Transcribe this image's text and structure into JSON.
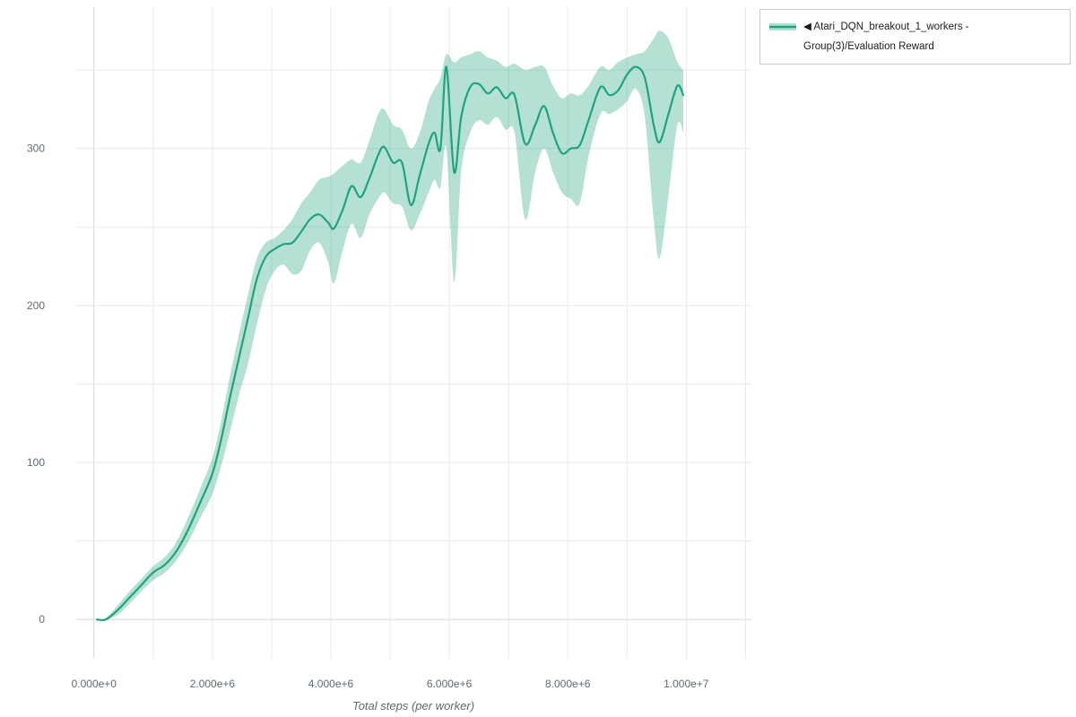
{
  "window": {
    "background": "#ffffff"
  },
  "legend": {
    "collapse_icon": "◀",
    "series_label": "Atari_DQN_breakout_1_workers - Group(3)/Evaluation Reward"
  },
  "chart_data": {
    "type": "line",
    "title": "",
    "xlabel": "Total steps (per worker)",
    "ylabel": "",
    "legend_position": "top-right-outside",
    "grid": true,
    "xlim": [
      -300000,
      11100000
    ],
    "ylim": [
      -25,
      390
    ],
    "x_grid_step": 1000000,
    "y_grid_step": 50,
    "x_ticks": {
      "values": [
        0,
        2000000,
        4000000,
        6000000,
        8000000,
        10000000
      ],
      "labels": [
        "0.000e+0",
        "2.000e+6",
        "4.000e+6",
        "6.000e+6",
        "8.000e+6",
        "1.000e+7"
      ]
    },
    "y_ticks": {
      "values": [
        0,
        100,
        200,
        300
      ],
      "labels": [
        "0",
        "100",
        "200",
        "300"
      ]
    },
    "series": [
      {
        "name": "Atari_DQN_breakout_1_workers - Group(3)/Evaluation Reward",
        "color": "#1ea47c",
        "band_opacity": 0.33,
        "x": [
          50000,
          200000,
          400000,
          600000,
          800000,
          1000000,
          1200000,
          1400000,
          1600000,
          1800000,
          2000000,
          2150000,
          2300000,
          2450000,
          2600000,
          2750000,
          2900000,
          3050000,
          3200000,
          3350000,
          3500000,
          3650000,
          3800000,
          3950000,
          4050000,
          4200000,
          4350000,
          4500000,
          4650000,
          4800000,
          4900000,
          5050000,
          5200000,
          5350000,
          5500000,
          5650000,
          5750000,
          5850000,
          5950000,
          6080000,
          6200000,
          6350000,
          6500000,
          6650000,
          6800000,
          6950000,
          7100000,
          7280000,
          7450000,
          7600000,
          7750000,
          7900000,
          8050000,
          8200000,
          8350000,
          8550000,
          8700000,
          8850000,
          9000000,
          9150000,
          9300000,
          9450000,
          9550000,
          9700000,
          9850000,
          9950000
        ],
        "mean": [
          0,
          0,
          6,
          14,
          22,
          30,
          35,
          44,
          58,
          75,
          93,
          115,
          142,
          167,
          192,
          217,
          231,
          236,
          239,
          240,
          247,
          255,
          258,
          253,
          249,
          261,
          276,
          269,
          281,
          296,
          301,
          291,
          291,
          264,
          283,
          303,
          310,
          300,
          352,
          285,
          320,
          339,
          341,
          335,
          339,
          332,
          334,
          303,
          315,
          327,
          310,
          297,
          300,
          302,
          318,
          339,
          334,
          337,
          347,
          352,
          345,
          315,
          304,
          322,
          340,
          334
        ],
        "lower": [
          0,
          0,
          3,
          10,
          18,
          25,
          30,
          38,
          50,
          65,
          80,
          98,
          120,
          143,
          163,
          188,
          210,
          222,
          226,
          220,
          222,
          235,
          240,
          228,
          214,
          235,
          252,
          243,
          258,
          268,
          272,
          265,
          263,
          248,
          258,
          272,
          280,
          275,
          300,
          215,
          285,
          310,
          318,
          315,
          320,
          312,
          310,
          255,
          285,
          300,
          285,
          272,
          268,
          265,
          295,
          322,
          322,
          325,
          330,
          338,
          320,
          255,
          230,
          270,
          315,
          310
        ],
        "upper": [
          0,
          1,
          9,
          18,
          26,
          34,
          40,
          50,
          66,
          84,
          103,
          127,
          156,
          182,
          207,
          230,
          240,
          243,
          248,
          255,
          265,
          272,
          280,
          282,
          284,
          289,
          293,
          291,
          305,
          322,
          325,
          315,
          312,
          300,
          310,
          330,
          338,
          345,
          360,
          355,
          358,
          360,
          362,
          358,
          356,
          352,
          354,
          350,
          352,
          352,
          340,
          332,
          335,
          334,
          340,
          352,
          350,
          355,
          358,
          360,
          362,
          370,
          375,
          370,
          355,
          350
        ]
      }
    ]
  }
}
